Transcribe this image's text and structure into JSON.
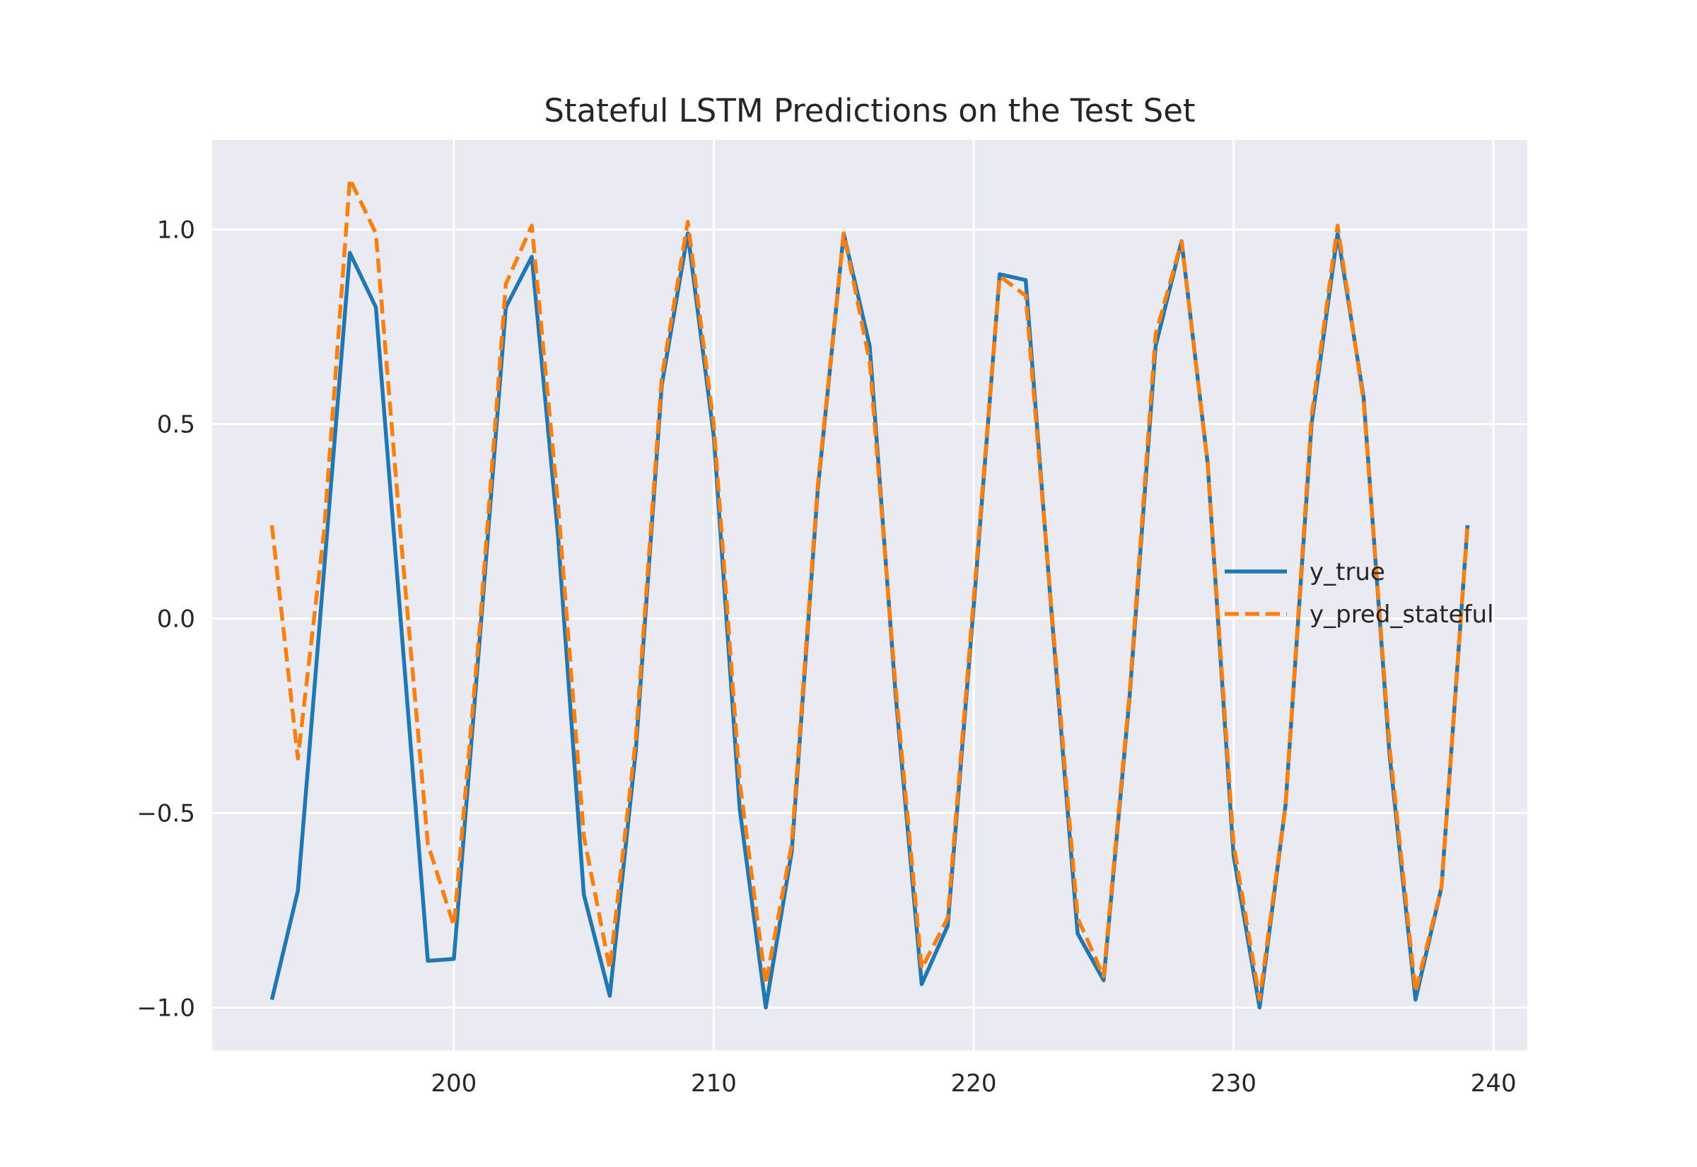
{
  "chart_data": {
    "type": "line",
    "title": "Stateful LSTM Predictions on the Test Set",
    "xlabel": "",
    "ylabel": "",
    "xlim": [
      190.7,
      241.3
    ],
    "ylim": [
      -1.11,
      1.23
    ],
    "xticks": [
      200,
      210,
      220,
      230,
      240
    ],
    "yticks": [
      1.0,
      0.5,
      0.0,
      -0.5,
      -1.0
    ],
    "ytick_labels": [
      "1.0",
      "0.5",
      "0.0",
      "−0.5",
      "−1.0"
    ],
    "grid": true,
    "background": "#eaeaf2",
    "legend_position": "center-right",
    "x": [
      193,
      194,
      195,
      196,
      197,
      198,
      199,
      200,
      201,
      202,
      203,
      204,
      205,
      206,
      207,
      208,
      209,
      210,
      211,
      212,
      213,
      214,
      215,
      216,
      217,
      218,
      219,
      220,
      221,
      222,
      223,
      224,
      225,
      226,
      227,
      228,
      229,
      230,
      231,
      232,
      233,
      234,
      235,
      236,
      237,
      238,
      239
    ],
    "series": [
      {
        "name": "y_true",
        "color": "#1f77b4",
        "style": "solid",
        "values": [
          -0.98,
          -0.7,
          0.12,
          0.94,
          0.8,
          -0.04,
          -0.88,
          -0.875,
          -0.05,
          0.8,
          0.93,
          0.22,
          -0.71,
          -0.97,
          -0.34,
          0.6,
          0.99,
          0.47,
          -0.49,
          -1.0,
          -0.6,
          0.33,
          0.99,
          0.7,
          -0.2,
          -0.94,
          -0.79,
          0.03,
          0.885,
          0.87,
          0.01,
          -0.81,
          -0.93,
          -0.2,
          0.7,
          0.97,
          0.4,
          -0.61,
          -1.0,
          -0.48,
          0.5,
          0.99,
          0.57,
          -0.35,
          -0.98,
          -0.69,
          0.24
        ]
      },
      {
        "name": "y_pred_stateful",
        "color": "#ff7f0e",
        "style": "dashed",
        "values": [
          0.24,
          -0.36,
          0.22,
          1.13,
          0.99,
          0.18,
          -0.58,
          -0.79,
          -0.02,
          0.86,
          1.01,
          0.3,
          -0.56,
          -0.9,
          -0.31,
          0.62,
          1.02,
          0.5,
          -0.42,
          -0.94,
          -0.58,
          0.34,
          0.99,
          0.66,
          -0.18,
          -0.9,
          -0.77,
          0.05,
          0.88,
          0.83,
          0.02,
          -0.77,
          -0.92,
          -0.19,
          0.73,
          0.97,
          0.4,
          -0.58,
          -0.98,
          -0.48,
          0.52,
          1.01,
          0.56,
          -0.33,
          -0.96,
          -0.69,
          0.24
        ]
      }
    ]
  }
}
